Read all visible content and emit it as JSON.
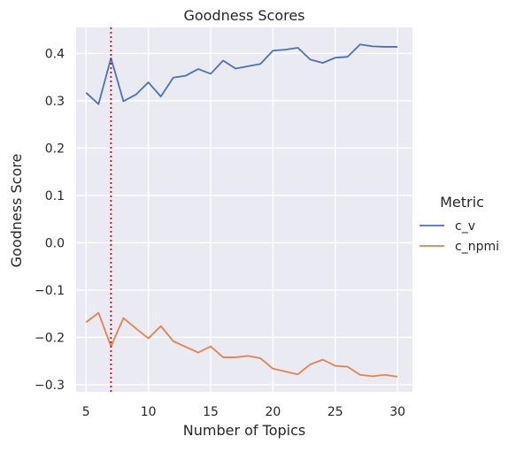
{
  "chart_data": {
    "type": "line",
    "title": "Goodness Scores",
    "xlabel": "Number of Topics",
    "ylabel": "Goodness Score",
    "xlim": [
      4.2,
      31.2
    ],
    "ylim": [
      -0.315,
      0.455
    ],
    "xticks": [
      5,
      10,
      15,
      20,
      25,
      30
    ],
    "xtick_labels": [
      "5",
      "10",
      "15",
      "20",
      "25",
      "30"
    ],
    "yticks": [
      -0.3,
      -0.2,
      -0.1,
      0.0,
      0.1,
      0.2,
      0.3,
      0.4
    ],
    "ytick_labels": [
      "−0.3",
      "−0.2",
      "−0.1",
      "0.0",
      "0.1",
      "0.2",
      "0.3",
      "0.4"
    ],
    "grid": true,
    "background": "#eaeaf2",
    "legend": {
      "title": "Metric",
      "placement": "right, outside plot, vertically centered"
    },
    "vline": {
      "x": 7,
      "color": "#e00000",
      "style": "dotted"
    },
    "x": [
      5,
      6,
      7,
      8,
      9,
      10,
      11,
      12,
      13,
      14,
      15,
      16,
      17,
      18,
      19,
      20,
      21,
      22,
      23,
      24,
      25,
      26,
      27,
      28,
      29,
      30
    ],
    "series": [
      {
        "name": "c_v",
        "color": "#4c72b0",
        "values": [
          0.317,
          0.293,
          0.39,
          0.299,
          0.313,
          0.339,
          0.309,
          0.349,
          0.353,
          0.367,
          0.357,
          0.385,
          0.368,
          0.373,
          0.378,
          0.406,
          0.408,
          0.412,
          0.387,
          0.38,
          0.391,
          0.393,
          0.419,
          0.415,
          0.414,
          0.414
        ]
      },
      {
        "name": "c_npmi",
        "color": "#dd8452",
        "values": [
          -0.168,
          -0.148,
          -0.219,
          -0.159,
          -0.181,
          -0.202,
          -0.176,
          -0.208,
          -0.22,
          -0.232,
          -0.219,
          -0.242,
          -0.242,
          -0.239,
          -0.244,
          -0.266,
          -0.272,
          -0.278,
          -0.257,
          -0.247,
          -0.26,
          -0.262,
          -0.279,
          -0.282,
          -0.279,
          -0.283
        ]
      }
    ]
  }
}
